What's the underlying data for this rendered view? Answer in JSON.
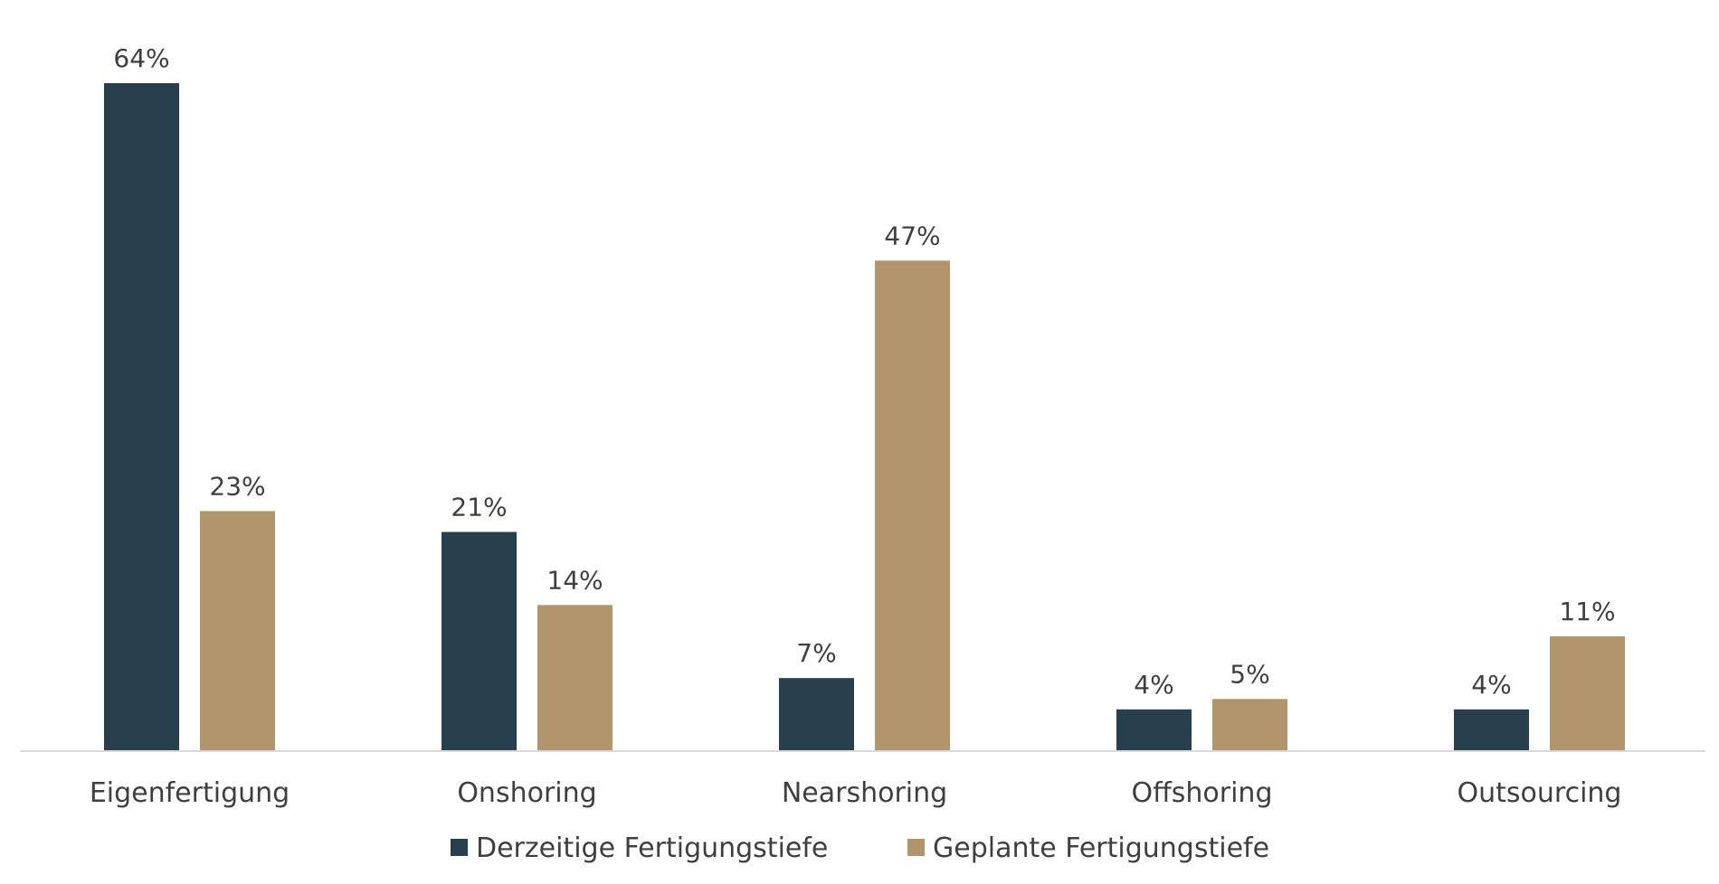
{
  "chart_data": {
    "type": "bar",
    "title": "",
    "xlabel": "",
    "ylabel": "",
    "categories": [
      "Eigenfertigung",
      "Onshoring",
      "Nearshoring",
      "Offshoring",
      "Outsourcing"
    ],
    "series": [
      {
        "name": "Derzeitige Fertigungstiefe",
        "color": "#283f4e",
        "values": [
          64,
          21,
          7,
          4,
          4
        ],
        "labels": [
          "64%",
          "21%",
          "7%",
          "4%",
          "4%"
        ]
      },
      {
        "name": "Geplante Fertigungstiefe",
        "color": "#b0956d",
        "values": [
          23,
          14,
          47,
          5,
          11
        ],
        "labels": [
          "23%",
          "14%",
          "47%",
          "5%",
          "11%"
        ]
      }
    ],
    "ylim": [
      0,
      64
    ],
    "grid": false,
    "legend_position": "bottom-center"
  }
}
